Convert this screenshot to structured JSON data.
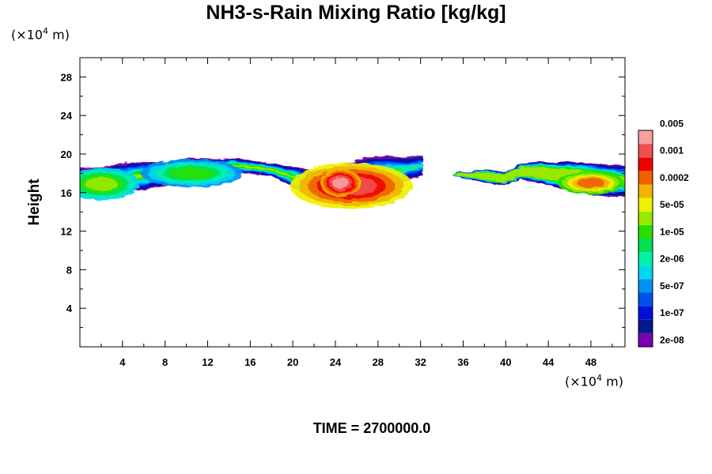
{
  "chart_data": {
    "type": "heatmap",
    "title": "NH3-s-Rain Mixing Ratio [kg/kg]",
    "ylabel": "Height",
    "x_unit": {
      "prefix": "(×10",
      "exp": "4",
      "suffix": " m)"
    },
    "y_unit": {
      "prefix": "(×10",
      "exp": "4",
      "suffix": " m)"
    },
    "footer": "TIME = 2700000.0",
    "xlim": [
      0,
      51.2
    ],
    "ylim": [
      0,
      30
    ],
    "x_ticks": [
      4,
      8,
      12,
      16,
      20,
      24,
      28,
      32,
      36,
      40,
      44,
      48
    ],
    "y_ticks": [
      4,
      8,
      12,
      16,
      20,
      24,
      28
    ],
    "colorbar": {
      "colors": [
        "#7a00b0",
        "#001a8c",
        "#0010d8",
        "#0050f0",
        "#0092f0",
        "#00d8f0",
        "#00f0a8",
        "#00e050",
        "#28e000",
        "#98e800",
        "#f0f000",
        "#f0b400",
        "#f06000",
        "#f00000",
        "#f05050",
        "#f8a0a0"
      ],
      "labels": [
        "2e-08",
        "1e-07",
        "5e-07",
        "2e-06",
        "1e-05",
        "5e-05",
        "0.0002",
        "0.001",
        "0.005"
      ]
    },
    "layer": {
      "segments": [
        {
          "x_start": 0,
          "x_end": 32.2,
          "top": [
            18.6,
            18.6,
            18.9,
            19.2,
            19.1,
            19.3,
            19.6,
            19.4,
            19.6,
            19.3,
            19.0,
            18.7,
            18.4,
            18.2,
            19.0,
            19.6,
            19.8,
            19.6,
            19.8
          ],
          "bottom": [
            16.0,
            15.9,
            15.8,
            16.2,
            16.6,
            16.8,
            17.2,
            17.6,
            18.0,
            18.0,
            17.8,
            16.8,
            15.6,
            15.4,
            15.6,
            16.0,
            16.6,
            17.2,
            17.8
          ],
          "core_peak": 1
        },
        {
          "x_start": 35.0,
          "x_end": 51.2,
          "top": [
            18.0,
            18.2,
            18.4,
            18.1,
            19.0,
            19.2,
            19.1,
            19.2,
            19.0,
            18.9,
            18.8
          ],
          "bottom": [
            17.8,
            17.4,
            17.0,
            16.8,
            17.4,
            17.0,
            16.6,
            16.0,
            15.8,
            15.6,
            15.6
          ],
          "core_peak": 0.55
        }
      ],
      "hotspots": [
        {
          "x": 25.5,
          "y": 16.7,
          "rx": 2.4,
          "ry": 1.0,
          "level": 14
        },
        {
          "x": 24.5,
          "y": 17.0,
          "rx": 0.8,
          "ry": 0.6,
          "level": 15
        },
        {
          "x": 2.0,
          "y": 16.9,
          "rx": 1.5,
          "ry": 0.7,
          "level": 9
        },
        {
          "x": 48.0,
          "y": 17.0,
          "rx": 1.3,
          "ry": 0.5,
          "level": 12
        },
        {
          "x": 10.5,
          "y": 18.0,
          "rx": 2.0,
          "ry": 0.6,
          "level": 8
        }
      ]
    }
  }
}
